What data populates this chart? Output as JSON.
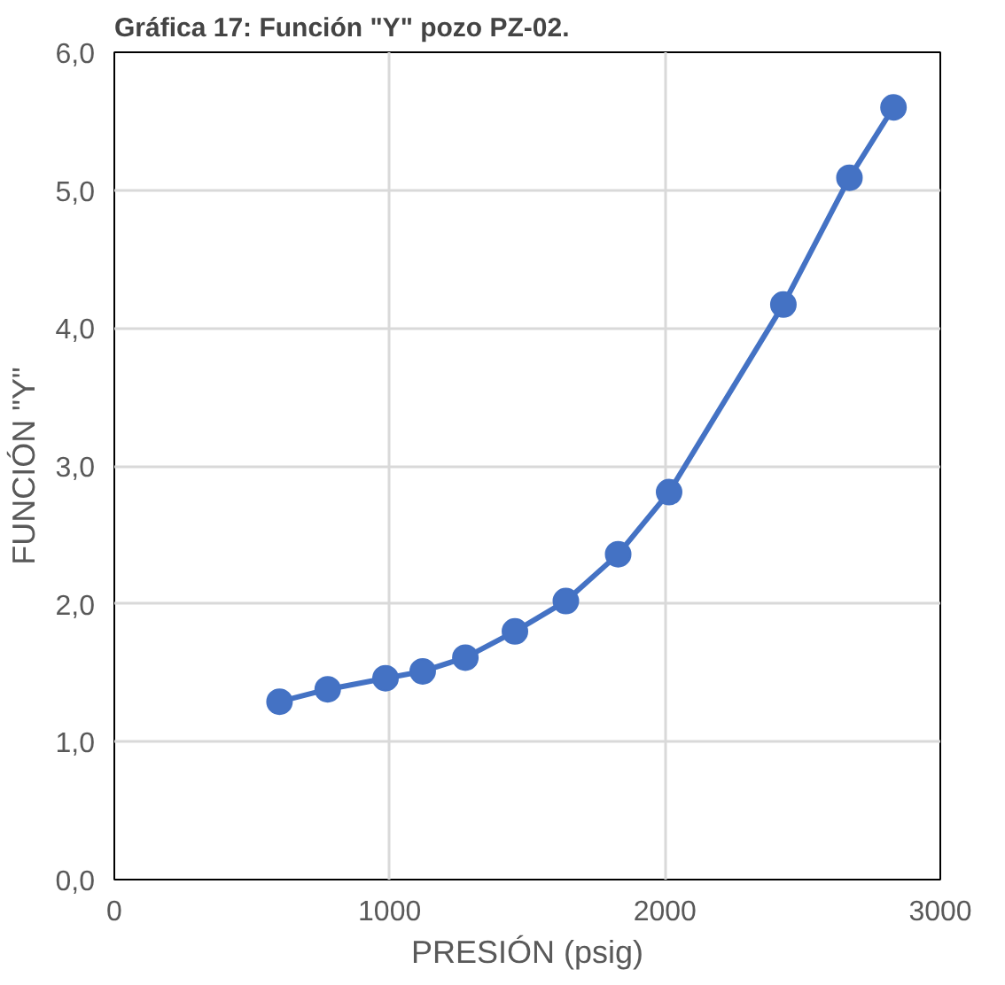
{
  "chart_data": {
    "type": "line",
    "title": "Gráfica 17: Función \"Y\" pozo PZ-02.",
    "xlabel": "PRESIÓN (psig)",
    "ylabel": "FUNCIÓN \"Y\"",
    "x": [
      600,
      775,
      985,
      1120,
      1275,
      1455,
      1640,
      1830,
      2015,
      2430,
      2670,
      2830
    ],
    "series": [
      {
        "color": "#4472c4",
        "values": [
          1.29,
          1.38,
          1.46,
          1.51,
          1.61,
          1.8,
          2.02,
          2.36,
          2.81,
          4.17,
          5.09,
          5.6
        ]
      }
    ],
    "xlim": [
      0,
      3000
    ],
    "xticks": [
      0,
      1000,
      2000,
      3000
    ],
    "ylim": [
      0,
      6
    ],
    "yticks": [
      {
        "value": 0,
        "label": "0,0"
      },
      {
        "value": 1,
        "label": "1,0"
      },
      {
        "value": 2,
        "label": "2,0"
      },
      {
        "value": 3,
        "label": "3,0"
      },
      {
        "value": 4,
        "label": "4,0"
      },
      {
        "value": 5,
        "label": "5,0"
      },
      {
        "value": 6,
        "label": "6,0"
      }
    ],
    "grid": true,
    "marker": "circle",
    "line_style": "solid"
  }
}
